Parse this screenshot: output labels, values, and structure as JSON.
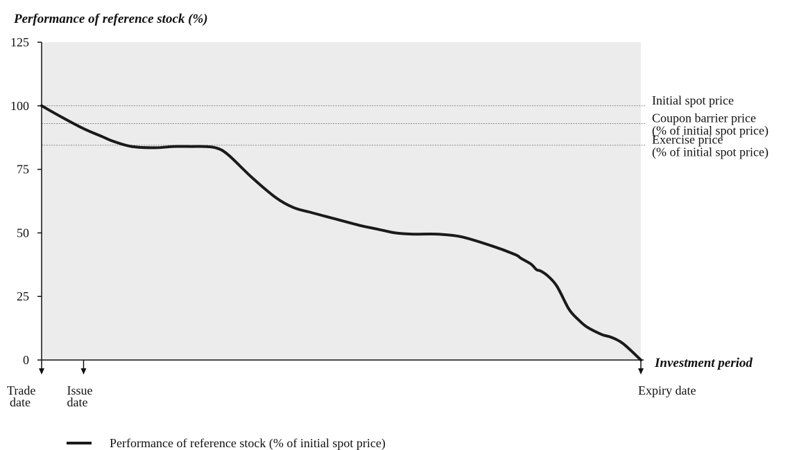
{
  "chart_data": {
    "type": "line",
    "ylabel": "Performance of reference stock (%)",
    "xlabel": "Investment period",
    "ylim": [
      0,
      125
    ],
    "yticks": [
      0,
      25,
      50,
      75,
      100,
      125
    ],
    "xlim": [
      0,
      100
    ],
    "grid": false,
    "legend_position": "bottom-left",
    "colors": {
      "plot_background": "#ececec",
      "series": "#1a1a1a",
      "reference_lines": "#8a8a8a"
    },
    "series": [
      {
        "name": "Performance of reference stock (% of initial spot price)",
        "x": [
          0,
          3,
          7,
          10,
          12,
          15,
          19,
          22,
          25,
          27,
          29,
          31,
          35,
          39,
          42,
          45,
          49,
          53,
          56,
          59,
          62,
          66,
          70,
          75,
          79,
          80,
          81.5,
          82,
          82.6,
          83.3,
          84.5,
          86,
          88,
          89.5,
          91,
          93.5,
          95,
          97,
          100
        ],
        "y": [
          100,
          96,
          91,
          88,
          86,
          84,
          83.5,
          84,
          84,
          84,
          83.5,
          81,
          72,
          64,
          60,
          58,
          55.5,
          53,
          51.5,
          50,
          49.5,
          49.5,
          48.5,
          45,
          41.5,
          40,
          38,
          37,
          35.5,
          35,
          33,
          29,
          20,
          16,
          13,
          10,
          9,
          6.5,
          0
        ]
      }
    ],
    "reference_lines": [
      {
        "y": 100,
        "label": [
          "Initial spot price"
        ]
      },
      {
        "y": 93,
        "label": [
          "Coupon barrier price",
          "(% of initial spot price)"
        ]
      },
      {
        "y": 84.5,
        "label": [
          "Exercise price",
          "(% of initial spot price)"
        ]
      }
    ],
    "x_markers": [
      {
        "x": 0,
        "label": [
          "Trade",
          "date"
        ]
      },
      {
        "x": 7,
        "label": [
          "Issue",
          "date"
        ]
      },
      {
        "x": 100,
        "label": [
          "Expiry date"
        ]
      }
    ]
  }
}
